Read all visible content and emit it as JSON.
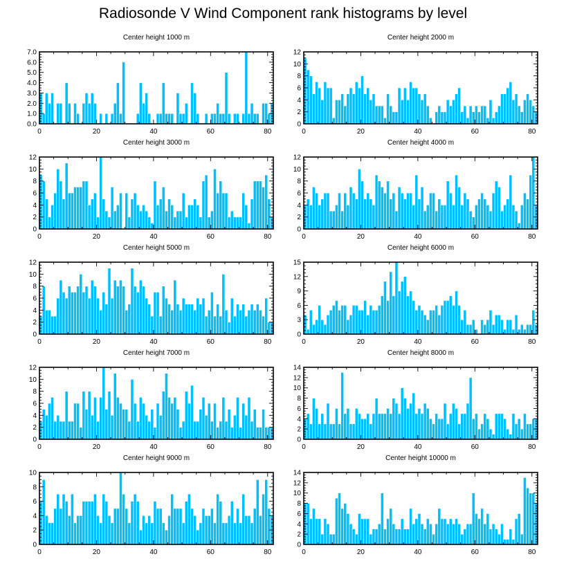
{
  "title": "Radiosonde V Wind Component rank histograms by level",
  "colors": {
    "bar": "#00bfff",
    "bar_edge": "#ffffff",
    "axis": "#000000"
  },
  "chart_data": [
    {
      "type": "bar",
      "title": "Center height 1000 m",
      "xlabel": "",
      "ylabel": "",
      "xlim": [
        0,
        82
      ],
      "ylim": [
        0,
        7
      ],
      "xticks": [
        0,
        20,
        40,
        60,
        80
      ],
      "xtick_labels": [
        "0",
        "20",
        "40",
        "60",
        "80"
      ],
      "yticks": [
        0,
        1,
        2,
        3,
        4,
        5,
        6,
        7
      ],
      "ytick_labels": [
        "0.0",
        "1.0",
        "2.0",
        "3.0",
        "4.0",
        "5.0",
        "6.0",
        "7.0"
      ],
      "values": [
        3,
        1,
        3,
        2,
        3,
        0,
        2,
        2,
        0,
        4,
        2,
        0,
        2,
        1,
        0,
        2,
        3,
        2,
        3,
        2,
        0,
        1,
        0,
        1,
        0,
        1,
        2,
        4,
        1,
        6,
        0,
        0,
        0,
        0,
        1,
        4,
        2,
        3,
        1,
        0,
        0,
        1,
        1,
        4,
        1,
        1,
        1,
        0,
        3,
        1,
        1,
        2,
        0,
        4,
        3,
        1,
        0,
        0,
        1,
        0,
        1,
        1,
        2,
        1,
        1,
        5,
        1,
        0,
        1,
        1,
        0,
        1,
        7,
        1,
        2,
        1,
        1,
        0,
        2,
        2,
        1,
        2
      ]
    },
    {
      "type": "bar",
      "title": "Center height 2000 m",
      "xlabel": "",
      "ylabel": "",
      "xlim": [
        0,
        82
      ],
      "ylim": [
        0,
        12
      ],
      "xticks": [
        0,
        20,
        40,
        60,
        80
      ],
      "xtick_labels": [
        "0",
        "20",
        "40",
        "60",
        "80"
      ],
      "yticks": [
        0,
        2,
        4,
        6,
        8,
        10,
        12
      ],
      "ytick_labels": [
        "0",
        "2",
        "4",
        "6",
        "8",
        "10",
        "12"
      ],
      "values": [
        11,
        9,
        8,
        5,
        7,
        6,
        4,
        7,
        6,
        6,
        1,
        4,
        4,
        5,
        3,
        5,
        6,
        5,
        7,
        6,
        8,
        5,
        6,
        4,
        5,
        3,
        3,
        3,
        1,
        5,
        3,
        2,
        2,
        6,
        4,
        6,
        4,
        7,
        6,
        6,
        5,
        4,
        5,
        3,
        1,
        0,
        2,
        3,
        2,
        2,
        4,
        3,
        4,
        5,
        6,
        2,
        3,
        1,
        3,
        2,
        3,
        2,
        3,
        3,
        1,
        4,
        1,
        2,
        3,
        5,
        5,
        6,
        7,
        4,
        5,
        3,
        2,
        4,
        5,
        4,
        3,
        2
      ]
    },
    {
      "type": "bar",
      "title": "Center height 3000 m",
      "xlabel": "",
      "ylabel": "",
      "xlim": [
        0,
        82
      ],
      "ylim": [
        0,
        12
      ],
      "xticks": [
        0,
        20,
        40,
        60,
        80
      ],
      "xtick_labels": [
        "0",
        "20",
        "40",
        "60",
        "80"
      ],
      "yticks": [
        0,
        2,
        4,
        6,
        8,
        10,
        12
      ],
      "ytick_labels": [
        "0",
        "2",
        "4",
        "6",
        "8",
        "10",
        "12"
      ],
      "values": [
        9,
        8,
        5,
        2,
        4,
        6,
        10,
        8,
        5,
        11,
        6,
        6,
        7,
        7,
        7,
        8,
        8,
        4,
        5,
        6,
        2,
        12,
        5,
        3,
        2,
        7,
        3,
        4,
        6,
        0,
        6,
        2,
        5,
        6,
        4,
        3,
        4,
        3,
        2,
        1,
        8,
        4,
        5,
        7,
        3,
        5,
        4,
        2,
        3,
        3,
        6,
        2,
        4,
        4,
        5,
        4,
        2,
        8,
        9,
        2,
        3,
        10,
        6,
        8,
        6,
        6,
        2,
        3,
        2,
        2,
        2,
        6,
        4,
        1,
        5,
        8,
        8,
        8,
        7,
        9,
        5,
        2
      ]
    },
    {
      "type": "bar",
      "title": "Center height 4000 m",
      "xlabel": "",
      "ylabel": "",
      "xlim": [
        0,
        82
      ],
      "ylim": [
        0,
        12
      ],
      "xticks": [
        0,
        20,
        40,
        60,
        80
      ],
      "xtick_labels": [
        "0",
        "20",
        "40",
        "60",
        "80"
      ],
      "yticks": [
        0,
        2,
        4,
        6,
        8,
        10,
        12
      ],
      "ytick_labels": [
        "0",
        "2",
        "4",
        "6",
        "8",
        "10",
        "12"
      ],
      "values": [
        4,
        5,
        4,
        7,
        6,
        4,
        5,
        6,
        6,
        3,
        3,
        4,
        6,
        3,
        6,
        4,
        7,
        6,
        5,
        10,
        8,
        5,
        6,
        5,
        4,
        9,
        8,
        7,
        6,
        8,
        5,
        6,
        3,
        7,
        6,
        5,
        6,
        6,
        4,
        9,
        5,
        7,
        3,
        4,
        6,
        6,
        3,
        5,
        4,
        4,
        8,
        6,
        4,
        9,
        7,
        4,
        6,
        5,
        3,
        2,
        4,
        5,
        6,
        5,
        4,
        3,
        6,
        8,
        7,
        3,
        4,
        5,
        9,
        4,
        3,
        1,
        4,
        6,
        5,
        9,
        12,
        4
      ]
    },
    {
      "type": "bar",
      "title": "Center height 5000 m",
      "xlabel": "",
      "ylabel": "",
      "xlim": [
        0,
        82
      ],
      "ylim": [
        0,
        12
      ],
      "xticks": [
        0,
        20,
        40,
        60,
        80
      ],
      "xtick_labels": [
        "0",
        "20",
        "40",
        "60",
        "80"
      ],
      "yticks": [
        0,
        2,
        4,
        6,
        8,
        10,
        12
      ],
      "ytick_labels": [
        "0",
        "2",
        "4",
        "6",
        "8",
        "10",
        "12"
      ],
      "values": [
        3,
        8,
        4,
        4,
        3,
        3,
        6,
        9,
        7,
        6,
        8,
        7,
        7,
        8,
        10,
        7,
        8,
        6,
        9,
        8,
        6,
        4,
        7,
        5,
        11,
        6,
        9,
        8,
        9,
        8,
        4,
        5,
        11,
        8,
        7,
        9,
        8,
        6,
        5,
        3,
        7,
        7,
        3,
        8,
        6,
        5,
        4,
        9,
        5,
        4,
        6,
        5,
        5,
        5,
        4,
        6,
        5,
        6,
        3,
        4,
        7,
        3,
        5,
        3,
        10,
        4,
        2,
        6,
        3,
        5,
        4,
        5,
        3,
        4,
        5,
        4,
        5,
        4,
        3,
        6,
        2,
        2
      ]
    },
    {
      "type": "bar",
      "title": "Center height 6000 m",
      "xlabel": "",
      "ylabel": "",
      "xlim": [
        0,
        82
      ],
      "ylim": [
        0,
        15
      ],
      "xticks": [
        0,
        20,
        40,
        60,
        80
      ],
      "xtick_labels": [
        "0",
        "20",
        "40",
        "60",
        "80"
      ],
      "yticks": [
        0,
        3,
        6,
        9,
        12,
        15
      ],
      "ytick_labels": [
        "0",
        "3",
        "6",
        "9",
        "12",
        "15"
      ],
      "values": [
        4,
        1,
        5,
        2,
        3,
        6,
        3,
        2,
        4,
        5,
        6,
        7,
        5,
        6,
        6,
        3,
        4,
        6,
        6,
        5,
        5,
        7,
        4,
        6,
        5,
        5,
        6,
        8,
        11,
        7,
        13,
        8,
        15,
        9,
        11,
        12,
        8,
        9,
        7,
        5,
        6,
        5,
        4,
        3,
        5,
        5,
        6,
        4,
        6,
        7,
        7,
        8,
        6,
        9,
        6,
        3,
        5,
        2,
        2,
        3,
        1,
        0,
        3,
        2,
        3,
        5,
        2,
        4,
        4,
        3,
        1,
        3,
        3,
        1,
        4,
        1,
        2,
        1,
        2,
        2,
        5,
        2
      ]
    },
    {
      "type": "bar",
      "title": "Center height 7000 m",
      "xlabel": "",
      "ylabel": "",
      "xlim": [
        0,
        82
      ],
      "ylim": [
        0,
        12
      ],
      "xticks": [
        0,
        20,
        40,
        60,
        80
      ],
      "xtick_labels": [
        "0",
        "20",
        "40",
        "60",
        "80"
      ],
      "yticks": [
        0,
        2,
        4,
        6,
        8,
        10,
        12
      ],
      "ytick_labels": [
        "0",
        "2",
        "4",
        "6",
        "8",
        "10",
        "12"
      ],
      "values": [
        3,
        5,
        4,
        6,
        7,
        3,
        4,
        3,
        3,
        8,
        3,
        3,
        6,
        6,
        2,
        8,
        5,
        8,
        4,
        7,
        3,
        7,
        12,
        5,
        8,
        4,
        11,
        7,
        6,
        5,
        5,
        3,
        10,
        6,
        3,
        7,
        6,
        4,
        3,
        5,
        2,
        6,
        4,
        8,
        11,
        7,
        6,
        7,
        5,
        2,
        3,
        8,
        6,
        9,
        3,
        3,
        5,
        7,
        4,
        6,
        3,
        6,
        2,
        3,
        7,
        3,
        5,
        2,
        4,
        7,
        2,
        6,
        4,
        7,
        3,
        5,
        2,
        2,
        5,
        2,
        2,
        2
      ]
    },
    {
      "type": "bar",
      "title": "Center height 8000 m",
      "xlabel": "",
      "ylabel": "",
      "xlim": [
        0,
        82
      ],
      "ylim": [
        0,
        14
      ],
      "xticks": [
        0,
        20,
        40,
        60,
        80
      ],
      "xtick_labels": [
        "0",
        "20",
        "40",
        "60",
        "80"
      ],
      "yticks": [
        0,
        2,
        4,
        6,
        8,
        10,
        12,
        14
      ],
      "ytick_labels": [
        "0",
        "2",
        "4",
        "6",
        "8",
        "10",
        "12",
        "14"
      ],
      "values": [
        4,
        5,
        3,
        8,
        6,
        3,
        5,
        3,
        7,
        3,
        3,
        6,
        3,
        13,
        5,
        6,
        3,
        3,
        6,
        5,
        4,
        4,
        5,
        3,
        5,
        8,
        5,
        5,
        5,
        6,
        5,
        8,
        7,
        5,
        10,
        8,
        6,
        7,
        9,
        5,
        6,
        5,
        7,
        6,
        4,
        3,
        5,
        4,
        4,
        7,
        3,
        5,
        7,
        6,
        3,
        5,
        5,
        7,
        12,
        4,
        5,
        2,
        3,
        5,
        4,
        2,
        1,
        5,
        5,
        5,
        4,
        2,
        1,
        5,
        3,
        4,
        2,
        5,
        3,
        3,
        4,
        4
      ]
    },
    {
      "type": "bar",
      "title": "Center height 9000 m",
      "xlabel": "",
      "ylabel": "",
      "xlim": [
        0,
        82
      ],
      "ylim": [
        0,
        10
      ],
      "xticks": [
        0,
        20,
        40,
        60,
        80
      ],
      "xtick_labels": [
        "0",
        "20",
        "40",
        "60",
        "80"
      ],
      "yticks": [
        0,
        2,
        4,
        6,
        8,
        10
      ],
      "ytick_labels": [
        "0",
        "2",
        "4",
        "6",
        "8",
        "10"
      ],
      "values": [
        6,
        9,
        4,
        3,
        3,
        5,
        7,
        5,
        7,
        6,
        4,
        7,
        3,
        4,
        4,
        6,
        6,
        6,
        6,
        7,
        4,
        3,
        7,
        6,
        4,
        3,
        5,
        5,
        10,
        7,
        5,
        3,
        6,
        7,
        6,
        2,
        4,
        3,
        4,
        3,
        6,
        5,
        5,
        3,
        2,
        4,
        7,
        5,
        5,
        5,
        3,
        6,
        7,
        5,
        4,
        2,
        3,
        5,
        4,
        4,
        5,
        3,
        7,
        6,
        3,
        3,
        4,
        6,
        3,
        5,
        3,
        7,
        4,
        4,
        3,
        5,
        9,
        4,
        7,
        9,
        5,
        4
      ]
    },
    {
      "type": "bar",
      "title": "Center height 10000 m",
      "xlabel": "",
      "ylabel": "",
      "xlim": [
        0,
        82
      ],
      "ylim": [
        0,
        14
      ],
      "xticks": [
        0,
        20,
        40,
        60,
        80
      ],
      "xtick_labels": [
        "0",
        "20",
        "40",
        "60",
        "80"
      ],
      "yticks": [
        0,
        2,
        4,
        6,
        8,
        10,
        12,
        14
      ],
      "ytick_labels": [
        "0",
        "2",
        "4",
        "6",
        "8",
        "10",
        "12",
        "14"
      ],
      "values": [
        8,
        8,
        5,
        7,
        5,
        5,
        2,
        5,
        4,
        2,
        2,
        9,
        10,
        7,
        8,
        6,
        4,
        3,
        2,
        6,
        5,
        5,
        5,
        2,
        3,
        3,
        4,
        10,
        3,
        5,
        7,
        4,
        3,
        3,
        5,
        3,
        3,
        7,
        4,
        5,
        6,
        4,
        3,
        5,
        4,
        2,
        4,
        7,
        5,
        5,
        4,
        5,
        4,
        5,
        4,
        2,
        3,
        4,
        4,
        10,
        6,
        5,
        7,
        4,
        6,
        3,
        4,
        3,
        2,
        4,
        1,
        1,
        3,
        1,
        5,
        6,
        2,
        13,
        11,
        10,
        10,
        8
      ]
    }
  ]
}
